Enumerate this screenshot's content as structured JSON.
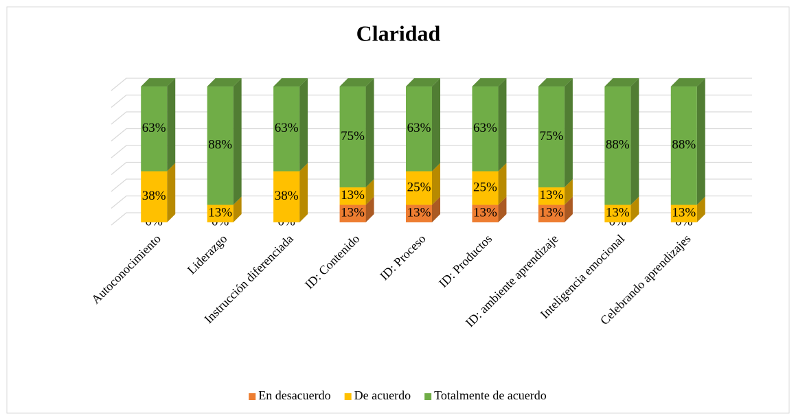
{
  "chart_data": {
    "type": "bar",
    "stacked": true,
    "title": "Claridad",
    "categories": [
      "Autoconocimiento",
      "Liderazgo",
      "Instrucción diferenciada",
      "ID: Contenido",
      "ID: Proceso",
      "ID: Productos",
      "ID: ambiente aprendizaje",
      "Inteligencia emocional",
      "Celebrando aprendizajes"
    ],
    "series": [
      {
        "name": "En desacuerdo",
        "color": "#ed7d31",
        "values": [
          0,
          0,
          0,
          13,
          13,
          13,
          13,
          0,
          0
        ],
        "value_labels": [
          "0%",
          "0%",
          "0%",
          "13%",
          "13%",
          "13%",
          "13%",
          "0%",
          "0%"
        ]
      },
      {
        "name": "De acuerdo",
        "color": "#ffc000",
        "values": [
          38,
          13,
          38,
          13,
          25,
          25,
          13,
          13,
          13
        ],
        "value_labels": [
          "38%",
          "13%",
          "38%",
          "13%",
          "25%",
          "25%",
          "13%",
          "13%",
          "13%"
        ]
      },
      {
        "name": "Totalmente de acuerdo",
        "color": "#70ad47",
        "values": [
          63,
          88,
          63,
          75,
          63,
          63,
          75,
          88,
          88
        ],
        "value_labels": [
          "63%",
          "88%",
          "63%",
          "75%",
          "63%",
          "63%",
          "75%",
          "88%",
          "88%"
        ]
      }
    ],
    "ylim": [
      0,
      100
    ],
    "yticks": [
      0,
      12.5,
      25,
      37.5,
      50,
      62.5,
      75,
      87.5,
      100
    ],
    "grid": true,
    "legend": "bottom"
  }
}
